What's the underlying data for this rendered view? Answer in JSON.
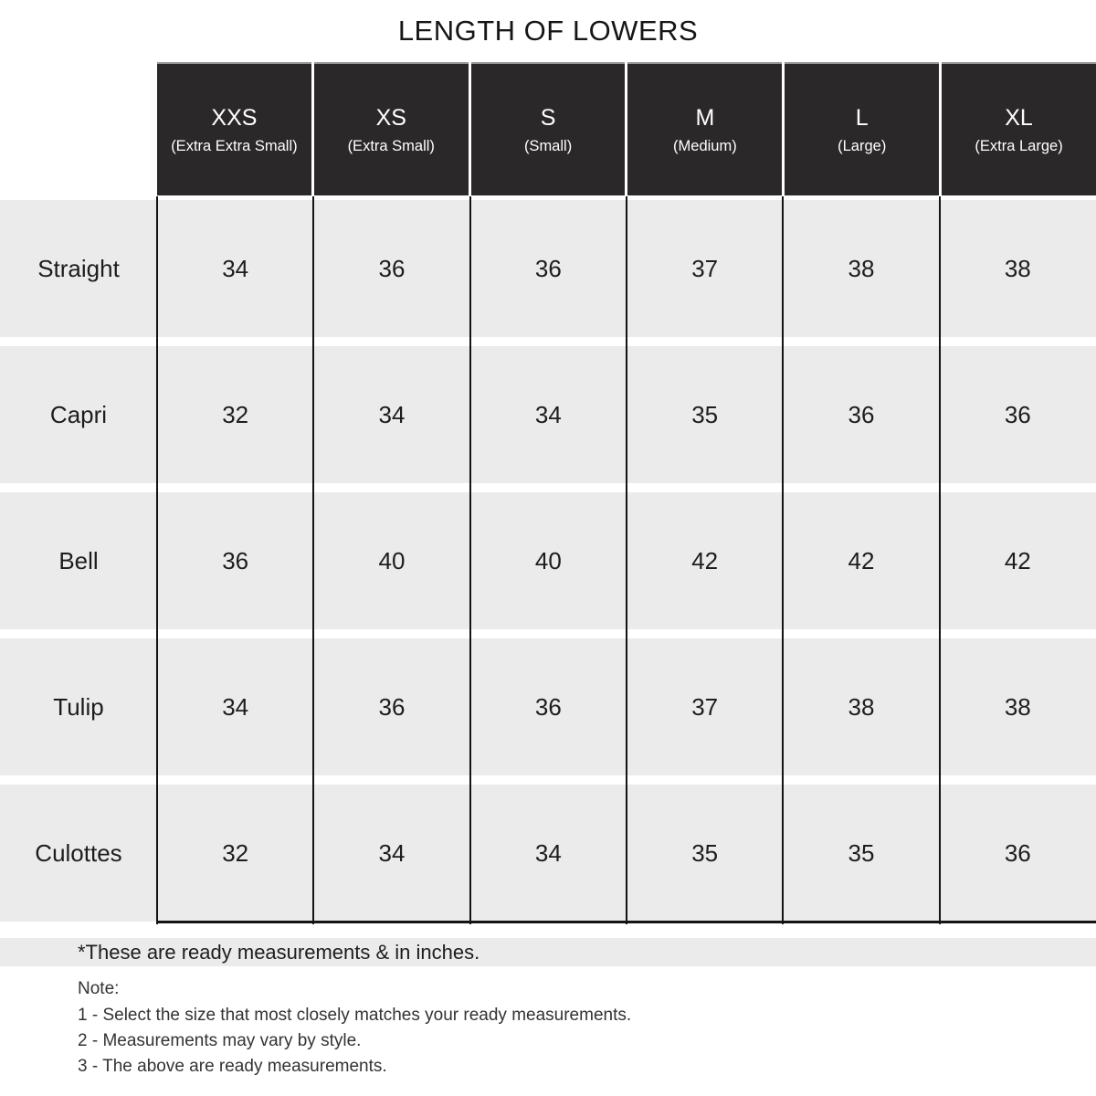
{
  "title": "LENGTH OF LOWERS",
  "colors": {
    "header_bg": "#2b2829",
    "header_text": "#ffffff",
    "row_bg": "#ebebeb",
    "border": "#141414",
    "text": "#1d1d1d"
  },
  "table": {
    "columns": [
      {
        "size": "XXS",
        "full": "(Extra Extra Small)"
      },
      {
        "size": "XS",
        "full": "(Extra Small)"
      },
      {
        "size": "S",
        "full": "(Small)"
      },
      {
        "size": "M",
        "full": "(Medium)"
      },
      {
        "size": "L",
        "full": "(Large)"
      },
      {
        "size": "XL",
        "full": "(Extra Large)"
      }
    ],
    "rows": [
      {
        "label": "Straight",
        "values": [
          "34",
          "36",
          "36",
          "37",
          "38",
          "38"
        ]
      },
      {
        "label": "Capri",
        "values": [
          "32",
          "34",
          "34",
          "35",
          "36",
          "36"
        ]
      },
      {
        "label": "Bell",
        "values": [
          "36",
          "40",
          "40",
          "42",
          "42",
          "42"
        ]
      },
      {
        "label": "Tulip",
        "values": [
          "34",
          "36",
          "36",
          "37",
          "38",
          "38"
        ]
      },
      {
        "label": "Culottes",
        "values": [
          "32",
          "34",
          "34",
          "35",
          "35",
          "36"
        ]
      }
    ]
  },
  "footnote": "*These are ready measurements & in inches.",
  "note": {
    "heading": "Note:",
    "lines": [
      "1 - Select the size that most closely matches your ready measurements.",
      "2 - Measurements may vary by style.",
      "3 - The above are ready measurements."
    ]
  },
  "chart_data": {
    "type": "table",
    "title": "LENGTH OF LOWERS",
    "columns": [
      "XXS (Extra Extra Small)",
      "XS (Extra Small)",
      "S (Small)",
      "M (Medium)",
      "L (Large)",
      "XL (Extra Large)"
    ],
    "row_labels": [
      "Straight",
      "Capri",
      "Bell",
      "Tulip",
      "Culottes"
    ],
    "values": [
      [
        34,
        36,
        36,
        37,
        38,
        38
      ],
      [
        32,
        34,
        34,
        35,
        36,
        36
      ],
      [
        36,
        40,
        40,
        42,
        42,
        42
      ],
      [
        34,
        36,
        36,
        37,
        38,
        38
      ],
      [
        32,
        34,
        34,
        35,
        35,
        36
      ]
    ],
    "units": "inches",
    "notes": "Ready measurements; may vary by style."
  }
}
